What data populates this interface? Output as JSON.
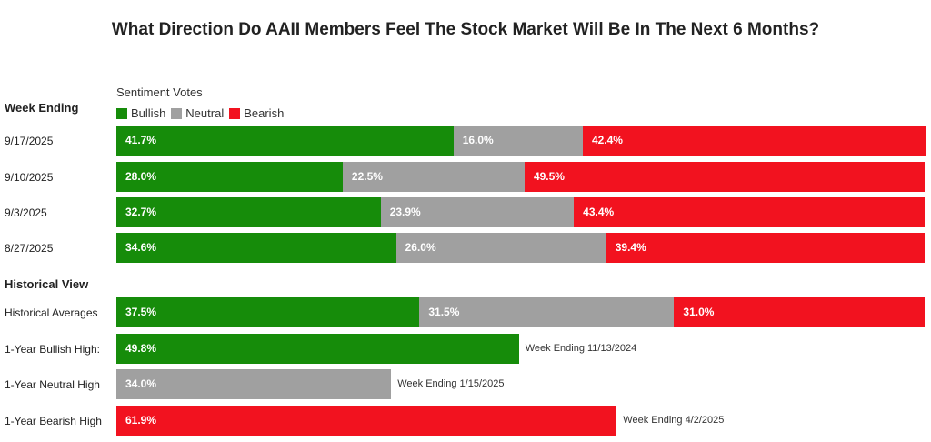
{
  "chart_data": {
    "type": "bar",
    "orientation": "horizontal",
    "stacked": true,
    "title": "What Direction Do AAII Members Feel The Stock Market Will Be In The Next 6 Months?",
    "legend_title": "Sentiment Votes",
    "legend_placement": "top-left",
    "series_names": [
      "Bullish",
      "Neutral",
      "Bearish"
    ],
    "colors": {
      "Bullish": "#168c0a",
      "Neutral": "#a0a0a0",
      "Bearish": "#f2121f"
    },
    "week_section_label": "Week Ending",
    "historical_section_label": "Historical View",
    "weekly": [
      {
        "label": "9/17/2025",
        "Bullish": 41.7,
        "Neutral": 16.0,
        "Bearish": 42.4,
        "texts": {
          "Bullish": "41.7%",
          "Neutral": "16.0%",
          "Bearish": "42.4%"
        }
      },
      {
        "label": "9/10/2025",
        "Bullish": 28.0,
        "Neutral": 22.5,
        "Bearish": 49.5,
        "texts": {
          "Bullish": "28.0%",
          "Neutral": "22.5%",
          "Bearish": "49.5%"
        }
      },
      {
        "label": "9/3/2025",
        "Bullish": 32.7,
        "Neutral": 23.9,
        "Bearish": 43.4,
        "texts": {
          "Bullish": "32.7%",
          "Neutral": "23.9%",
          "Bearish": "43.4%"
        }
      },
      {
        "label": "8/27/2025",
        "Bullish": 34.6,
        "Neutral": 26.0,
        "Bearish": 39.4,
        "texts": {
          "Bullish": "34.6%",
          "Neutral": "26.0%",
          "Bearish": "39.4%"
        }
      }
    ],
    "historical_average": {
      "label": "Historical Averages",
      "Bullish": 37.5,
      "Neutral": 31.5,
      "Bearish": 31.0,
      "texts": {
        "Bullish": "37.5%",
        "Neutral": "31.5%",
        "Bearish": "31.0%"
      }
    },
    "highs": [
      {
        "label": "1-Year Bullish High:",
        "series": "Bullish",
        "value": 49.8,
        "text": "49.8%",
        "note": "Week Ending 11/13/2024"
      },
      {
        "label": "1-Year Neutral High",
        "series": "Neutral",
        "value": 34.0,
        "text": "34.0%",
        "note": "Week Ending 1/15/2025"
      },
      {
        "label": "1-Year Bearish High",
        "series": "Bearish",
        "value": 61.9,
        "text": "61.9%",
        "note": "Week Ending 4/2/2025"
      }
    ],
    "xlim": [
      0,
      100
    ]
  }
}
